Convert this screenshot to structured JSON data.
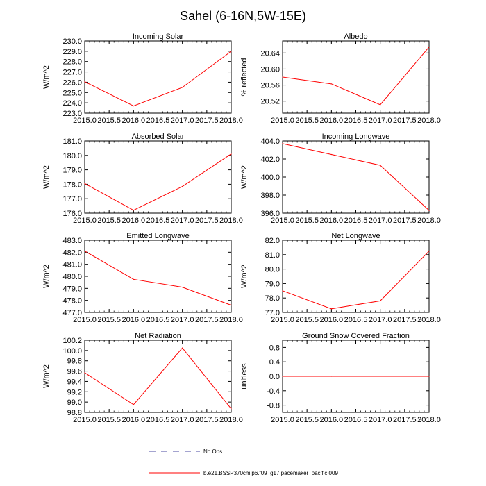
{
  "figure": {
    "title": "Sahel (6-16N,5W-15E)",
    "series_color": "#ff0000",
    "obs_color": "#4a4aa0"
  },
  "legend": {
    "obs_label": "No Obs",
    "model_label": "b.e21.BSSP370cmip6.f09_g17.pacemaker_pacific.009"
  },
  "chart_data": [
    {
      "type": "line",
      "title": "Incoming Solar",
      "ylabel": "W/m^2",
      "x": [
        2015.0,
        2016.0,
        2017.0,
        2018.0
      ],
      "values": [
        226.05,
        223.7,
        225.5,
        229.0
      ],
      "xlim": [
        2015.0,
        2018.0
      ],
      "ylim": [
        223.0,
        230.0
      ],
      "xticks": [
        "2015.0",
        "2015.5",
        "2016.0",
        "2016.5",
        "2017.0",
        "2017.5",
        "2018.0"
      ],
      "yticks": [
        "223.0",
        "224.0",
        "225.0",
        "226.0",
        "227.0",
        "228.0",
        "229.0",
        "230.0"
      ]
    },
    {
      "type": "line",
      "title": "Albedo",
      "ylabel": "% reflected",
      "x": [
        2015.0,
        2016.0,
        2017.0,
        2018.0
      ],
      "values": [
        20.58,
        20.563,
        20.511,
        20.655
      ],
      "xlim": [
        2015.0,
        2018.0
      ],
      "ylim": [
        20.49,
        20.67
      ],
      "xticks": [
        "2015.0",
        "2015.5",
        "2016.0",
        "2016.5",
        "2017.0",
        "2017.5",
        "2018.0"
      ],
      "yticks": [
        "20.52",
        "20.56",
        "20.60",
        "20.64"
      ]
    },
    {
      "type": "line",
      "title": "Absorbed Solar",
      "ylabel": "W/m^2",
      "x": [
        2015.0,
        2016.0,
        2017.0,
        2018.0
      ],
      "values": [
        178.05,
        176.2,
        177.85,
        180.1
      ],
      "xlim": [
        2015.0,
        2018.0
      ],
      "ylim": [
        176.0,
        181.0
      ],
      "xticks": [
        "2015.0",
        "2015.5",
        "2016.0",
        "2016.5",
        "2017.0",
        "2017.5",
        "2018.0"
      ],
      "yticks": [
        "176.0",
        "177.0",
        "178.0",
        "179.0",
        "180.0",
        "181.0"
      ]
    },
    {
      "type": "line",
      "title": "Incoming Longwave",
      "ylabel": "W/m^2",
      "x": [
        2015.0,
        2016.0,
        2017.0,
        2018.0
      ],
      "values": [
        403.7,
        402.5,
        401.3,
        396.3
      ],
      "xlim": [
        2015.0,
        2018.0
      ],
      "ylim": [
        396.0,
        404.0
      ],
      "xticks": [
        "2015.0",
        "2015.5",
        "2016.0",
        "2016.5",
        "2017.0",
        "2017.5",
        "2018.0"
      ],
      "yticks": [
        "396.0",
        "398.0",
        "400.0",
        "402.0",
        "404.0"
      ]
    },
    {
      "type": "line",
      "title": "Emitted Longwave",
      "ylabel": "W/m^2",
      "x": [
        2015.0,
        2016.0,
        2017.0,
        2018.0
      ],
      "values": [
        482.1,
        479.75,
        479.1,
        477.6
      ],
      "xlim": [
        2015.0,
        2018.0
      ],
      "ylim": [
        477.0,
        483.0
      ],
      "xticks": [
        "2015.0",
        "2015.5",
        "2016.0",
        "2016.5",
        "2017.0",
        "2017.5",
        "2018.0"
      ],
      "yticks": [
        "477.0",
        "478.0",
        "479.0",
        "480.0",
        "481.0",
        "482.0",
        "483.0"
      ]
    },
    {
      "type": "line",
      "title": "Net Longwave",
      "ylabel": "W/m^2",
      "x": [
        2015.0,
        2016.0,
        2017.0,
        2018.0
      ],
      "values": [
        78.5,
        77.25,
        77.8,
        81.25
      ],
      "xlim": [
        2015.0,
        2018.0
      ],
      "ylim": [
        77.0,
        82.0
      ],
      "xticks": [
        "2015.0",
        "2015.5",
        "2016.0",
        "2016.5",
        "2017.0",
        "2017.5",
        "2018.0"
      ],
      "yticks": [
        "77.0",
        "78.0",
        "79.0",
        "80.0",
        "81.0",
        "82.0"
      ]
    },
    {
      "type": "line",
      "title": "Net Radiation",
      "ylabel": "W/m^2",
      "x": [
        2015.0,
        2016.0,
        2017.0,
        2018.0
      ],
      "values": [
        99.57,
        98.95,
        100.05,
        98.87
      ],
      "xlim": [
        2015.0,
        2018.0
      ],
      "ylim": [
        98.8,
        100.2
      ],
      "xticks": [
        "2015.0",
        "2015.5",
        "2016.0",
        "2016.5",
        "2017.0",
        "2017.5",
        "2018.0"
      ],
      "yticks": [
        "98.8",
        "99.0",
        "99.2",
        "99.4",
        "99.6",
        "99.8",
        "100.0",
        "100.2"
      ]
    },
    {
      "type": "line",
      "title": "Ground Snow Covered Fraction",
      "ylabel": "unitless",
      "x": [
        2015.0,
        2016.0,
        2017.0,
        2018.0
      ],
      "values": [
        0.0,
        0.0,
        0.0,
        0.0
      ],
      "xlim": [
        2015.0,
        2018.0
      ],
      "ylim": [
        -1.0,
        1.0
      ],
      "xticks": [
        "2015.0",
        "2015.5",
        "2016.0",
        "2016.5",
        "2017.0",
        "2017.5",
        "2018.0"
      ],
      "yticks": [
        "-0.8",
        "-0.4",
        "0.0",
        "0.4",
        "0.8"
      ]
    }
  ]
}
